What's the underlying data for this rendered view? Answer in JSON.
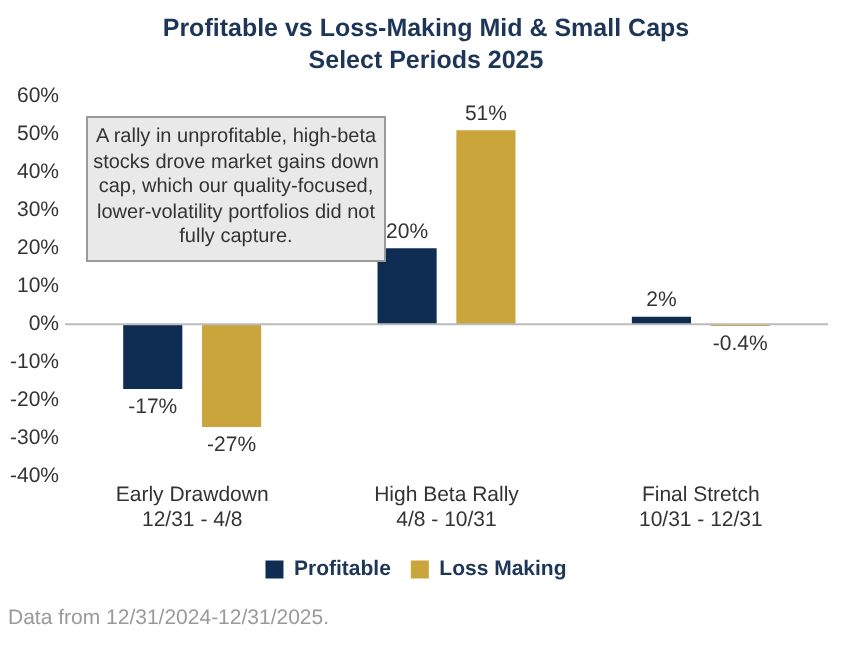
{
  "chart_data": {
    "type": "bar",
    "title": "Profitable vs Loss-Making Mid & Small Caps\nSelect Periods 2025",
    "categories": [
      "Early Drawdown\n12/31 - 4/8",
      "High Beta Rally\n4/8 - 10/31",
      "Final Stretch\n10/31 - 12/31"
    ],
    "series": [
      {
        "name": "Profitable",
        "color": "#0f2d52",
        "values": [
          -17,
          20,
          2
        ],
        "value_labels": [
          "-17%",
          "20%",
          "2%"
        ]
      },
      {
        "name": "Loss Making",
        "color": "#c9a53c",
        "values": [
          -27,
          51,
          -0.4
        ],
        "value_labels": [
          "-27%",
          "51%",
          "-0.4%"
        ]
      }
    ],
    "ylim": [
      -40,
      60
    ],
    "yticks": [
      {
        "value": -40,
        "label": "-40%"
      },
      {
        "value": -30,
        "label": "-30%"
      },
      {
        "value": -20,
        "label": "-20%"
      },
      {
        "value": -10,
        "label": "-10%"
      },
      {
        "value": 0,
        "label": "0%"
      },
      {
        "value": 10,
        "label": "10%"
      },
      {
        "value": 20,
        "label": "20%"
      },
      {
        "value": 30,
        "label": "30%"
      },
      {
        "value": 40,
        "label": "40%"
      },
      {
        "value": 50,
        "label": "50%"
      },
      {
        "value": 60,
        "label": "60%"
      }
    ],
    "legend": "bottom",
    "annotations": [
      "A rally in unprofitable, high-beta stocks drove market gains down cap, which our quality-focused, lower-volatility portfolios did not fully capture.",
      "Data from 12/31/2024-12/31/2025."
    ]
  }
}
